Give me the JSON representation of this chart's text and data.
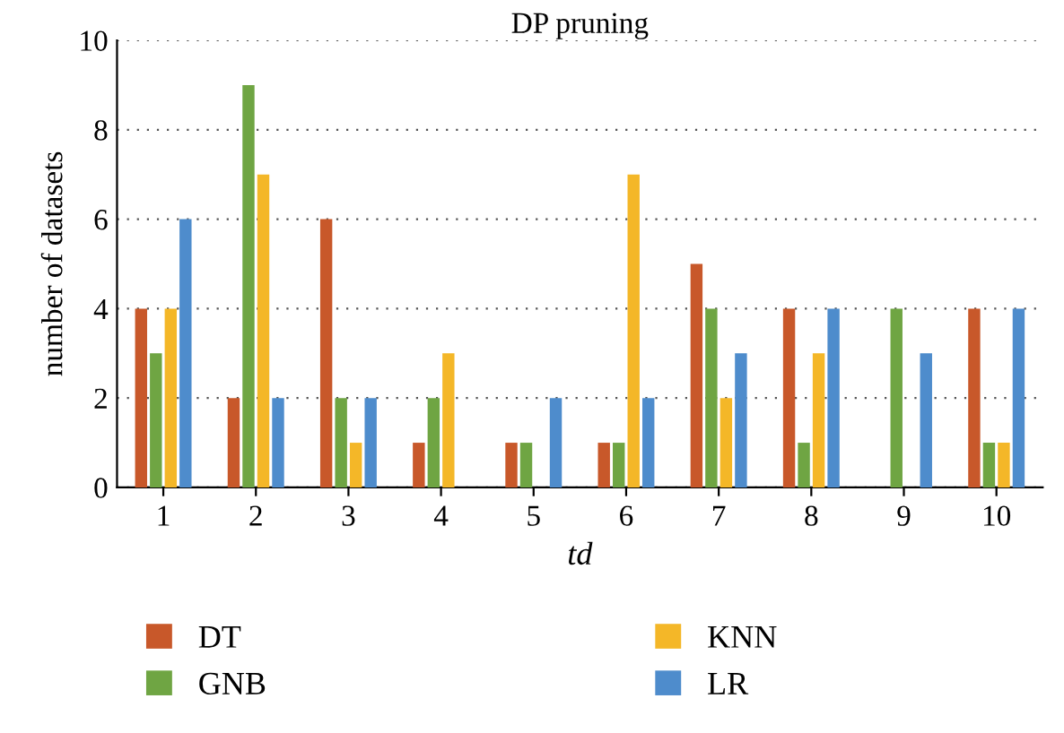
{
  "chart_data": {
    "type": "bar",
    "title": "DP pruning",
    "xlabel": "td",
    "ylabel": "number of datasets",
    "categories": [
      "1",
      "2",
      "3",
      "4",
      "5",
      "6",
      "7",
      "8",
      "9",
      "10"
    ],
    "series": [
      {
        "name": "DT",
        "color": "#c8582a",
        "values": [
          4,
          2,
          6,
          1,
          1,
          1,
          5,
          4,
          0,
          4
        ]
      },
      {
        "name": "GNB",
        "color": "#6fa543",
        "values": [
          3,
          9,
          2,
          2,
          1,
          1,
          4,
          1,
          4,
          1
        ]
      },
      {
        "name": "KNN",
        "color": "#f4b728",
        "values": [
          4,
          7,
          1,
          3,
          0,
          7,
          2,
          3,
          0,
          1
        ]
      },
      {
        "name": "LR",
        "color": "#4e8ccc",
        "values": [
          6,
          2,
          2,
          0,
          2,
          2,
          3,
          4,
          3,
          4
        ]
      }
    ],
    "ylim": [
      0,
      10
    ],
    "yticks": [
      0,
      2,
      4,
      6,
      8,
      10
    ],
    "grid": "y",
    "legend": "bottom"
  }
}
